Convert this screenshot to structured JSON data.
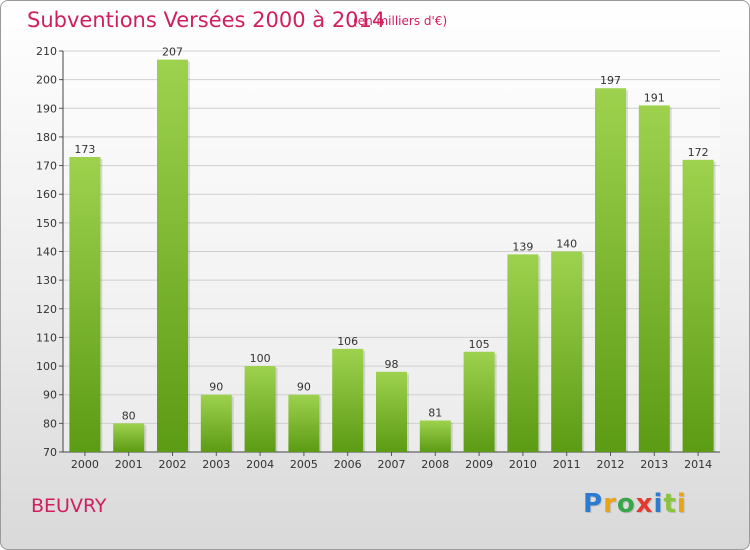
{
  "title": "Subventions Versées 2000 à 2014",
  "subtitle": "(en milliers d'€)",
  "commune": "BEUVRY",
  "logo": {
    "text": "Proxiti",
    "colors": [
      "#2b7bd3",
      "#e8a317",
      "#3aa64a",
      "#e23b2e",
      "#2b7bd3",
      "#8ac43f",
      "#e8a317"
    ]
  },
  "colors": {
    "title": "#d01e5e",
    "bar_top": "#9ed24e",
    "bar_bottom": "#5c9b14",
    "grid": "#d0d0d0"
  },
  "chart_data": {
    "type": "bar",
    "title": "Subventions Versées 2000 à 2014",
    "subtitle": "(en milliers d'€)",
    "xlabel": "",
    "ylabel": "",
    "categories": [
      "2000",
      "2001",
      "2002",
      "2003",
      "2004",
      "2005",
      "2006",
      "2007",
      "2008",
      "2009",
      "2010",
      "2011",
      "2012",
      "2013",
      "2014"
    ],
    "values": [
      173,
      80,
      207,
      90,
      100,
      90,
      106,
      98,
      81,
      105,
      139,
      140,
      197,
      191,
      172
    ],
    "ylim": [
      70,
      210
    ],
    "yticks": [
      70,
      80,
      90,
      100,
      110,
      120,
      130,
      140,
      150,
      160,
      170,
      180,
      190,
      200,
      210
    ],
    "grid": true,
    "data_labels": true,
    "legend": "none"
  }
}
